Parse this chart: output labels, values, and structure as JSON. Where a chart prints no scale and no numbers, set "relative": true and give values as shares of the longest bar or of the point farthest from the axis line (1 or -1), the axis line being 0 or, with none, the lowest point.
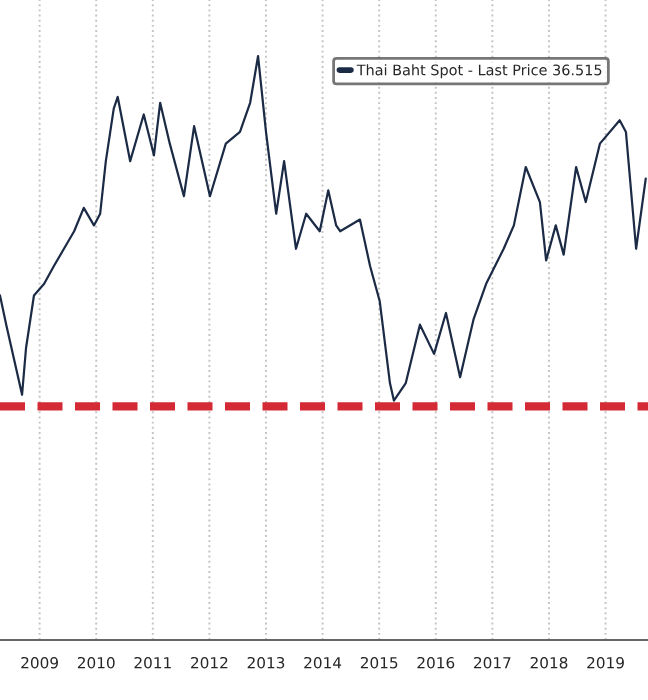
{
  "chart_data": {
    "type": "line",
    "relative": true,
    "x": [
      2008.8,
      2008.91,
      2009.05,
      2009.19,
      2009.26,
      2009.4,
      2009.58,
      2009.75,
      2009.93,
      2010.11,
      2010.28,
      2010.46,
      2010.57,
      2010.67,
      2010.81,
      2010.88,
      2011.1,
      2011.34,
      2011.52,
      2011.63,
      2011.8,
      2012.05,
      2012.23,
      2012.51,
      2012.79,
      2013.04,
      2013.22,
      2013.36,
      2013.5,
      2013.68,
      2013.82,
      2014.03,
      2014.21,
      2014.45,
      2014.6,
      2014.74,
      2014.81,
      2015.16,
      2015.34,
      2015.51,
      2015.69,
      2015.76,
      2015.97,
      2016.22,
      2016.47,
      2016.68,
      2016.93,
      2017.17,
      2017.39,
      2017.7,
      2017.88,
      2018.09,
      2018.34,
      2018.45,
      2018.62,
      2018.76,
      2018.98,
      2019.15,
      2019.4,
      2019.75,
      2019.86,
      2020.04,
      2020.21
    ],
    "series": [
      {
        "name": "Thai Baht Spot - Last Price 36.515",
        "color": "#1c2b45",
        "values": [
          0.59,
          0.54,
          0.48,
          0.42,
          0.5,
          0.59,
          0.61,
          0.64,
          0.67,
          0.7,
          0.74,
          0.71,
          0.73,
          0.82,
          0.91,
          0.93,
          0.82,
          0.9,
          0.83,
          0.92,
          0.85,
          0.76,
          0.88,
          0.76,
          0.85,
          0.87,
          0.92,
          1.0,
          0.87,
          0.73,
          0.82,
          0.67,
          0.73,
          0.7,
          0.77,
          0.71,
          0.7,
          0.72,
          0.64,
          0.58,
          0.44,
          0.41,
          0.44,
          0.54,
          0.49,
          0.56,
          0.45,
          0.55,
          0.61,
          0.67,
          0.71,
          0.81,
          0.75,
          0.65,
          0.71,
          0.66,
          0.81,
          0.75,
          0.85,
          0.89,
          0.87,
          0.67,
          0.79
        ]
      }
    ],
    "xlim": [
      2008.8,
      2020.25
    ],
    "xticks": [
      {
        "value": 2009.5,
        "label": "2009"
      },
      {
        "value": 2010.5,
        "label": "2010"
      },
      {
        "value": 2011.5,
        "label": "2011"
      },
      {
        "value": 2012.5,
        "label": "2012"
      },
      {
        "value": 2013.5,
        "label": "2013"
      },
      {
        "value": 2014.5,
        "label": "2014"
      },
      {
        "value": 2015.5,
        "label": "2015"
      },
      {
        "value": 2016.5,
        "label": "2016"
      },
      {
        "value": 2017.5,
        "label": "2017"
      },
      {
        "value": 2018.5,
        "label": "2018"
      },
      {
        "value": 2019.5,
        "label": "2019"
      }
    ],
    "ref_lines": [
      {
        "axis": "y",
        "value": 0.4,
        "color": "#d42a35",
        "line_style": "dashed"
      }
    ],
    "grid": "x",
    "legend": "top right",
    "tick_labels": "x",
    "line_style": "solid",
    "marker": "none"
  }
}
